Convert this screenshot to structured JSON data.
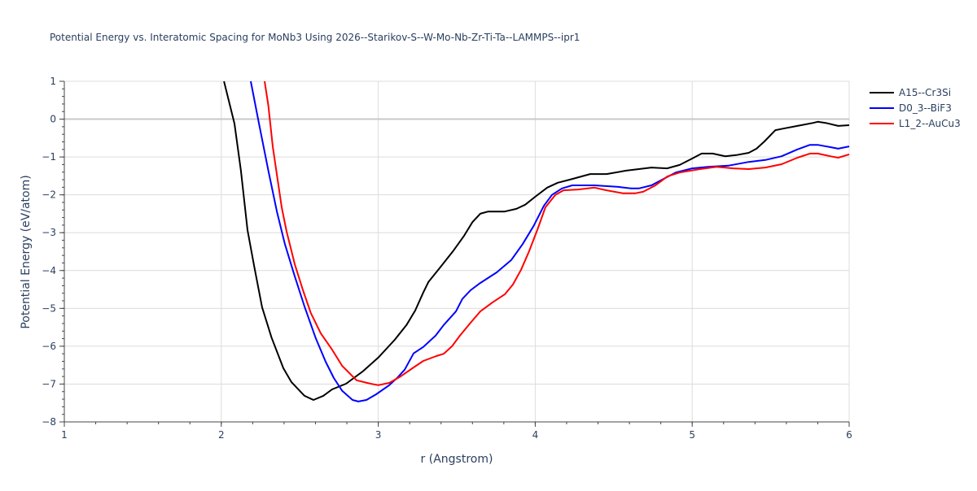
{
  "chart_data": {
    "type": "line",
    "title": "Potential Energy vs. Interatomic Spacing for MoNb3 Using 2026--Starikov-S--W-Mo-Nb-Zr-Ti-Ta--LAMMPS--ipr1",
    "xlabel": "r (Angstrom)",
    "ylabel": "Potential Energy (eV/atom)",
    "xlim": [
      1,
      6
    ],
    "ylim": [
      -8,
      1
    ],
    "xticks": [
      "1",
      "2",
      "3",
      "4",
      "5",
      "6"
    ],
    "yticks": [
      "1",
      "0",
      "−1",
      "−2",
      "−3",
      "−4",
      "−5",
      "−6",
      "−7",
      "−8"
    ],
    "grid": true,
    "legend_position": "top-right",
    "series": [
      {
        "name": "A15--Cr3Si",
        "color": "#000000",
        "x": [
          2.017,
          2.084,
          2.125,
          2.167,
          2.21,
          2.26,
          2.32,
          2.395,
          2.447,
          2.53,
          2.587,
          2.65,
          2.706,
          2.795,
          2.9,
          3.0,
          3.105,
          3.18,
          3.235,
          3.287,
          3.32,
          3.39,
          3.48,
          3.547,
          3.6,
          3.65,
          3.7,
          3.806,
          3.88,
          3.936,
          4.0,
          4.076,
          4.143,
          4.22,
          4.35,
          4.455,
          4.58,
          4.74,
          4.84,
          4.92,
          5.0,
          5.06,
          5.13,
          5.21,
          5.28,
          5.36,
          5.41,
          5.46,
          5.53,
          5.58,
          5.67,
          5.77,
          5.8,
          5.85,
          5.93,
          6.0
        ],
        "y": [
          1,
          -0.12,
          -1.36,
          -2.93,
          -3.9,
          -4.97,
          -5.77,
          -6.58,
          -6.95,
          -7.31,
          -7.42,
          -7.31,
          -7.14,
          -6.99,
          -6.67,
          -6.3,
          -5.83,
          -5.44,
          -5.06,
          -4.58,
          -4.3,
          -3.94,
          -3.47,
          -3.08,
          -2.72,
          -2.5,
          -2.44,
          -2.44,
          -2.37,
          -2.26,
          -2.05,
          -1.81,
          -1.68,
          -1.6,
          -1.45,
          -1.45,
          -1.36,
          -1.28,
          -1.3,
          -1.21,
          -1.04,
          -0.91,
          -0.91,
          -0.98,
          -0.95,
          -0.89,
          -0.78,
          -0.59,
          -0.29,
          -0.25,
          -0.18,
          -0.1,
          -0.07,
          -0.1,
          -0.18,
          -0.16
        ]
      },
      {
        "name": "D0_3--BiF3",
        "color": "#0000ff",
        "x": [
          2.188,
          2.24,
          2.3,
          2.354,
          2.405,
          2.468,
          2.53,
          2.6,
          2.665,
          2.717,
          2.77,
          2.836,
          2.873,
          2.925,
          2.987,
          3.07,
          3.12,
          3.168,
          3.225,
          3.287,
          3.365,
          3.417,
          3.495,
          3.536,
          3.588,
          3.65,
          3.754,
          3.848,
          3.92,
          3.99,
          4.055,
          4.107,
          4.17,
          4.236,
          4.377,
          4.53,
          4.61,
          4.66,
          4.74,
          4.817,
          4.895,
          5.0,
          5.1,
          5.23,
          5.36,
          5.466,
          5.57,
          5.67,
          5.75,
          5.8,
          5.88,
          5.93,
          6.0
        ],
        "y": [
          1,
          -0.12,
          -1.36,
          -2.44,
          -3.3,
          -4.15,
          -4.95,
          -5.77,
          -6.41,
          -6.84,
          -7.18,
          -7.42,
          -7.46,
          -7.42,
          -7.27,
          -7.03,
          -6.84,
          -6.62,
          -6.19,
          -6.02,
          -5.72,
          -5.44,
          -5.08,
          -4.75,
          -4.52,
          -4.33,
          -4.05,
          -3.72,
          -3.3,
          -2.82,
          -2.29,
          -2.0,
          -1.83,
          -1.75,
          -1.75,
          -1.79,
          -1.83,
          -1.83,
          -1.75,
          -1.58,
          -1.41,
          -1.3,
          -1.26,
          -1.23,
          -1.13,
          -1.08,
          -0.98,
          -0.8,
          -0.68,
          -0.68,
          -0.74,
          -0.78,
          -0.72
        ]
      },
      {
        "name": "L1_2--AuCu3",
        "color": "#ff0000",
        "x": [
          2.276,
          2.3,
          2.328,
          2.354,
          2.385,
          2.416,
          2.468,
          2.52,
          2.57,
          2.634,
          2.706,
          2.77,
          2.83,
          2.862,
          2.95,
          3.0,
          3.07,
          3.142,
          3.225,
          3.287,
          3.37,
          3.417,
          3.47,
          3.52,
          3.588,
          3.65,
          3.728,
          3.806,
          3.858,
          3.91,
          3.96,
          4.013,
          4.065,
          4.128,
          4.18,
          4.273,
          4.377,
          4.455,
          4.56,
          4.636,
          4.688,
          4.766,
          4.843,
          4.92,
          5.05,
          5.155,
          5.26,
          5.36,
          5.466,
          5.57,
          5.67,
          5.75,
          5.8,
          5.88,
          5.93,
          6.0
        ],
        "y": [
          1,
          0.36,
          -0.72,
          -1.47,
          -2.33,
          -2.97,
          -3.83,
          -4.52,
          -5.12,
          -5.66,
          -6.09,
          -6.52,
          -6.77,
          -6.9,
          -6.99,
          -7.03,
          -6.97,
          -6.8,
          -6.56,
          -6.39,
          -6.26,
          -6.2,
          -6.0,
          -5.72,
          -5.38,
          -5.08,
          -4.84,
          -4.63,
          -4.37,
          -3.98,
          -3.5,
          -2.93,
          -2.33,
          -2.0,
          -1.88,
          -1.86,
          -1.81,
          -1.88,
          -1.96,
          -1.96,
          -1.92,
          -1.75,
          -1.51,
          -1.41,
          -1.32,
          -1.26,
          -1.3,
          -1.32,
          -1.28,
          -1.19,
          -1.02,
          -0.91,
          -0.91,
          -0.98,
          -1.02,
          -0.93
        ]
      }
    ]
  }
}
